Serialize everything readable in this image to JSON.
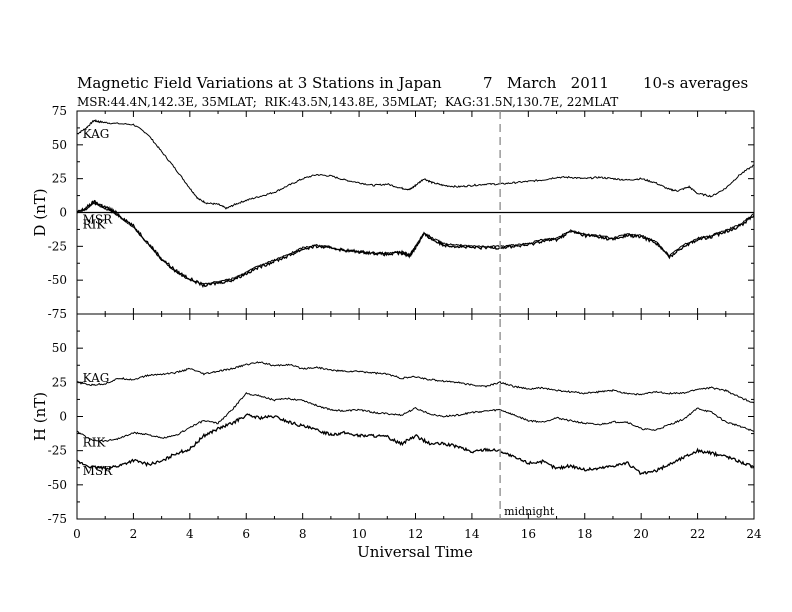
{
  "header": {
    "title": "Magnetic Field Variations at 3 Stations in Japan",
    "date": "7   March   2011",
    "averaging": "10-s averages",
    "stations_line": "MSR:44.4N,142.3E, 35MLAT;  RIK:43.5N,143.8E, 35MLAT;  KAG:31.5N,130.7E, 22MLAT"
  },
  "chart_data": [
    {
      "type": "line",
      "panel": "D",
      "ylabel": "D (nT)",
      "ylim": [
        -75,
        75
      ],
      "yticks": [
        75,
        50,
        25,
        0,
        -25,
        -50,
        -75
      ],
      "xlim": [
        0,
        24
      ],
      "reference_line": 0,
      "series": [
        {
          "name": "KAG",
          "x": [
            0,
            0.3,
            0.6,
            0.8,
            1.2,
            2.0,
            2.5,
            3.0,
            3.5,
            4.0,
            4.3,
            4.6,
            5.0,
            5.3,
            5.6,
            6.0,
            6.5,
            7.0,
            7.5,
            8.0,
            8.5,
            9.0,
            9.5,
            10.0,
            10.5,
            11.0,
            11.5,
            11.8,
            12.0,
            12.3,
            12.6,
            13.0,
            13.5,
            14.0,
            14.5,
            15.0,
            15.5,
            16.0,
            16.5,
            17.0,
            17.5,
            18.0,
            18.5,
            19.0,
            19.5,
            20.0,
            20.5,
            21.0,
            21.3,
            21.7,
            22.0,
            22.5,
            23.0,
            23.5,
            24.0
          ],
          "values": [
            58,
            62,
            68,
            67,
            66,
            65,
            58,
            45,
            32,
            18,
            10,
            7,
            6,
            3,
            6,
            9,
            12,
            15,
            20,
            25,
            28,
            27,
            24,
            22,
            20,
            21,
            18,
            17,
            20,
            25,
            22,
            20,
            19,
            20,
            21,
            21,
            22,
            23,
            24,
            26,
            26,
            25,
            26,
            25,
            24,
            25,
            22,
            17,
            16,
            19,
            14,
            12,
            18,
            28,
            35
          ]
        },
        {
          "name": "MSR",
          "x": [
            0,
            0.3,
            0.6,
            0.9,
            1.2,
            1.5,
            2.0,
            2.5,
            3.0,
            3.5,
            4.0,
            4.5,
            5.0,
            5.5,
            6.0,
            6.5,
            7.0,
            7.5,
            8.0,
            8.5,
            9.0,
            9.5,
            10.0,
            10.5,
            11.0,
            11.5,
            11.8,
            12.0,
            12.3,
            12.6,
            13.0,
            13.5,
            14.0,
            14.5,
            15.0,
            15.5,
            16.0,
            16.5,
            17.0,
            17.5,
            18.0,
            18.5,
            19.0,
            19.5,
            20.0,
            20.5,
            21.0,
            21.5,
            22.0,
            22.5,
            23.0,
            23.5,
            24.0
          ],
          "values": [
            0,
            3,
            8,
            5,
            2,
            -2,
            -10,
            -22,
            -34,
            -43,
            -49,
            -54,
            -52,
            -50,
            -45,
            -40,
            -36,
            -32,
            -27,
            -25,
            -26,
            -28,
            -29,
            -30,
            -31,
            -30,
            -32,
            -26,
            -16,
            -20,
            -24,
            -25,
            -26,
            -26,
            -26,
            -25,
            -24,
            -21,
            -20,
            -14,
            -17,
            -18,
            -20,
            -17,
            -18,
            -22,
            -33,
            -25,
            -20,
            -18,
            -14,
            -10,
            -2
          ]
        },
        {
          "name": "RIK",
          "x": [
            0,
            0.3,
            0.6,
            0.9,
            1.2,
            1.5,
            2.0,
            2.5,
            3.0,
            3.5,
            4.0,
            4.5,
            5.0,
            5.5,
            6.0,
            6.5,
            7.0,
            7.5,
            8.0,
            8.5,
            9.0,
            9.5,
            10.0,
            10.5,
            11.0,
            11.5,
            11.8,
            12.0,
            12.3,
            12.6,
            13.0,
            13.5,
            14.0,
            14.5,
            15.0,
            15.5,
            16.0,
            16.5,
            17.0,
            17.5,
            18.0,
            18.5,
            19.0,
            19.5,
            20.0,
            20.5,
            21.0,
            21.5,
            22.0,
            22.5,
            23.0,
            23.5,
            24.0
          ],
          "values": [
            0,
            2,
            7,
            4,
            1,
            -3,
            -11,
            -23,
            -35,
            -44,
            -50,
            -53,
            -51,
            -49,
            -44,
            -39,
            -35,
            -31,
            -26,
            -24,
            -26,
            -28,
            -29,
            -30,
            -30,
            -29,
            -31,
            -25,
            -15,
            -19,
            -23,
            -24,
            -25,
            -25,
            -25,
            -24,
            -23,
            -20,
            -19,
            -13,
            -16,
            -17,
            -19,
            -16,
            -17,
            -21,
            -32,
            -24,
            -19,
            -17,
            -13,
            -9,
            -1
          ]
        }
      ],
      "labels": [
        {
          "text": "KAG",
          "at_x": 0.2,
          "at_y": 58
        },
        {
          "text": "MSR",
          "at_x": 0.2,
          "at_y": -5
        },
        {
          "text": "RIK",
          "at_x": 0.2,
          "at_y": -9
        }
      ]
    },
    {
      "type": "line",
      "panel": "H",
      "ylabel": "H (nT)",
      "ylim": [
        -75,
        75
      ],
      "yticks": [
        50,
        25,
        0,
        -25,
        -50,
        -75
      ],
      "xlim": [
        0,
        24
      ],
      "xlabel": "Universal Time",
      "xticks": [
        0,
        2,
        4,
        6,
        8,
        10,
        12,
        14,
        16,
        18,
        20,
        22,
        24
      ],
      "series": [
        {
          "name": "KAG",
          "x": [
            0,
            0.5,
            1.0,
            1.5,
            2.0,
            2.5,
            3.0,
            3.5,
            4.0,
            4.5,
            5.0,
            5.5,
            6.0,
            6.5,
            7.0,
            7.5,
            8.0,
            8.5,
            9.0,
            9.5,
            10.0,
            10.5,
            11.0,
            11.5,
            12.0,
            12.5,
            13.0,
            13.5,
            14.0,
            14.5,
            15.0,
            15.5,
            16.0,
            16.5,
            17.0,
            17.5,
            18.0,
            18.5,
            19.0,
            19.5,
            20.0,
            20.5,
            21.0,
            21.5,
            22.0,
            22.5,
            23.0,
            23.5,
            24.0
          ],
          "values": [
            25,
            23,
            24,
            28,
            27,
            30,
            31,
            32,
            35,
            31,
            33,
            35,
            38,
            40,
            37,
            38,
            35,
            36,
            34,
            33,
            33,
            32,
            31,
            28,
            29,
            27,
            26,
            25,
            23,
            22,
            25,
            22,
            20,
            21,
            19,
            18,
            17,
            18,
            19,
            17,
            16,
            18,
            17,
            17,
            20,
            21,
            19,
            14,
            10
          ]
        },
        {
          "name": "RIK",
          "x": [
            0,
            0.5,
            1.0,
            1.5,
            2.0,
            2.5,
            3.0,
            3.5,
            4.0,
            4.5,
            5.0,
            5.5,
            6.0,
            6.5,
            7.0,
            7.5,
            8.0,
            8.5,
            9.0,
            9.5,
            10.0,
            10.5,
            11.0,
            11.5,
            12.0,
            12.5,
            13.0,
            13.5,
            14.0,
            14.5,
            15.0,
            15.5,
            16.0,
            16.5,
            17.0,
            17.5,
            18.0,
            18.5,
            19.0,
            19.5,
            20.0,
            20.5,
            21.0,
            21.5,
            22.0,
            22.5,
            23.0,
            23.5,
            24.0
          ],
          "values": [
            -11,
            -17,
            -18,
            -16,
            -12,
            -13,
            -16,
            -14,
            -8,
            -3,
            -5,
            5,
            17,
            15,
            12,
            13,
            12,
            8,
            5,
            4,
            5,
            3,
            2,
            1,
            6,
            2,
            0,
            1,
            3,
            4,
            5,
            1,
            -3,
            -4,
            -1,
            -3,
            -5,
            -6,
            -4,
            -4,
            -9,
            -10,
            -6,
            -2,
            6,
            3,
            -4,
            -7,
            -11
          ]
        },
        {
          "name": "MSR",
          "x": [
            0,
            0.5,
            1.0,
            1.5,
            2.0,
            2.5,
            3.0,
            3.5,
            4.0,
            4.5,
            5.0,
            5.5,
            6.0,
            6.5,
            7.0,
            7.5,
            8.0,
            8.5,
            9.0,
            9.5,
            10.0,
            10.5,
            11.0,
            11.5,
            12.0,
            12.5,
            13.0,
            13.5,
            14.0,
            14.5,
            15.0,
            15.5,
            16.0,
            16.5,
            17.0,
            17.5,
            18.0,
            18.5,
            19.0,
            19.5,
            20.0,
            20.5,
            21.0,
            21.5,
            22.0,
            22.5,
            23.0,
            23.5,
            24.0
          ],
          "values": [
            -33,
            -37,
            -38,
            -36,
            -32,
            -35,
            -33,
            -27,
            -24,
            -14,
            -9,
            -5,
            1,
            -1,
            0,
            -4,
            -7,
            -10,
            -13,
            -12,
            -14,
            -14,
            -15,
            -20,
            -14,
            -20,
            -20,
            -22,
            -26,
            -24,
            -25,
            -30,
            -34,
            -33,
            -38,
            -36,
            -39,
            -38,
            -36,
            -34,
            -42,
            -40,
            -35,
            -30,
            -25,
            -27,
            -29,
            -33,
            -37
          ]
        }
      ],
      "labels": [
        {
          "text": "KAG",
          "at_x": 0.2,
          "at_y": 28
        },
        {
          "text": "RIK",
          "at_x": 0.2,
          "at_y": -19
        },
        {
          "text": "MSR",
          "at_x": 0.2,
          "at_y": -40
        }
      ],
      "annotation": {
        "text": "midnight",
        "x": 15
      }
    }
  ],
  "midnight_line_x": 15,
  "colors": {
    "line": "#000000",
    "dashed": "#999999",
    "background": "#ffffff"
  }
}
